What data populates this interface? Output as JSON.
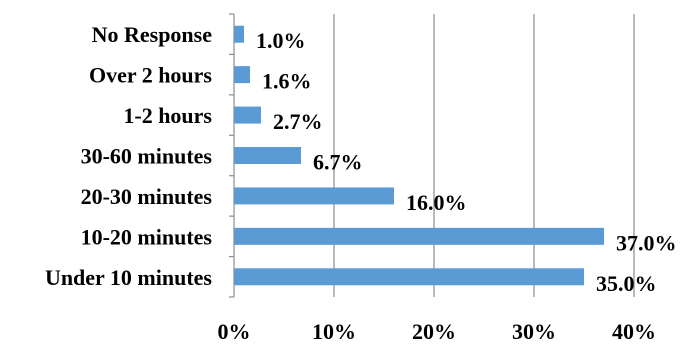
{
  "chart_data": {
    "type": "bar",
    "orientation": "horizontal",
    "categories": [
      "No Response",
      "Over 2 hours",
      "1-2 hours",
      "30-60 minutes",
      "20-30 minutes",
      "10-20 minutes",
      "Under 10 minutes"
    ],
    "values": [
      1.0,
      1.6,
      2.7,
      6.7,
      16.0,
      37.0,
      35.0
    ],
    "data_labels": [
      "1.0%",
      "1.6%",
      "2.7%",
      "6.7%",
      "16.0%",
      "37.0%",
      "35.0%"
    ],
    "xlim": [
      0,
      40
    ],
    "x_ticks": [
      0,
      10,
      20,
      30,
      40
    ],
    "x_tick_labels": [
      "0%",
      "10%",
      "20%",
      "30%",
      "40%"
    ],
    "grid": "vertical",
    "legend": "none",
    "title": "",
    "xlabel": "",
    "ylabel": "",
    "colors": {
      "bar": "#5B9BD5",
      "gridline": "#8C8C8C",
      "axis": "#8C8C8C",
      "text": "#000000"
    }
  }
}
